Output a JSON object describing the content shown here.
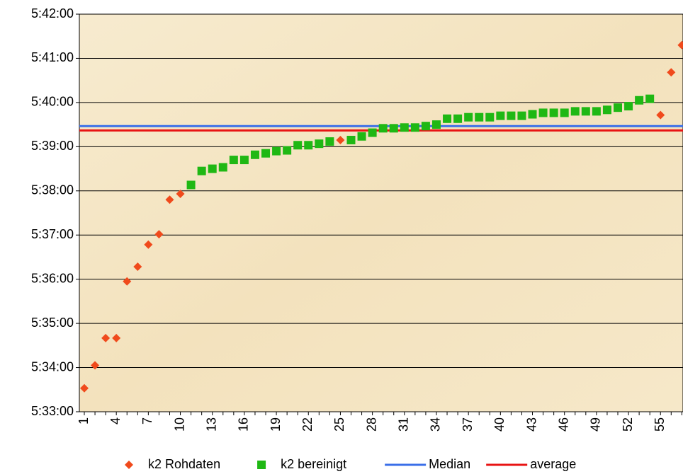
{
  "chart_data": {
    "type": "scatter",
    "categories": [
      "1",
      null,
      null,
      "4",
      null,
      null,
      "7",
      null,
      null,
      "10",
      null,
      null,
      "13",
      null,
      null,
      "16",
      null,
      null,
      "19",
      null,
      null,
      "22",
      null,
      null,
      "25",
      null,
      null,
      "28",
      null,
      null,
      "31",
      null,
      null,
      "34",
      null,
      null,
      "37",
      null,
      null,
      "40",
      null,
      null,
      "43",
      null,
      null,
      "46",
      null,
      null,
      "49",
      null,
      null,
      "52",
      null,
      null,
      "55",
      null,
      null
    ],
    "ylim": [
      19980,
      20520
    ],
    "yticks": [
      {
        "value": 19980,
        "label": "5:33:00"
      },
      {
        "value": 20040,
        "label": "5:34:00"
      },
      {
        "value": 20100,
        "label": "5:35:00"
      },
      {
        "value": 20160,
        "label": "5:36:00"
      },
      {
        "value": 20220,
        "label": "5:37:00"
      },
      {
        "value": 20280,
        "label": "5:38:00"
      },
      {
        "value": 20340,
        "label": "5:39:00"
      },
      {
        "value": 20400,
        "label": "5:40:00"
      },
      {
        "value": 20460,
        "label": "5:41:00"
      },
      {
        "value": 20520,
        "label": "5:42:00"
      }
    ],
    "grid": true,
    "series": [
      {
        "name": "k2 Rohdaten",
        "color": "#f04a1c",
        "marker": "diamond",
        "values": [
          20012,
          20043,
          20080,
          20080,
          20157,
          20177,
          20207,
          20221,
          20268,
          20276,
          null,
          null,
          null,
          null,
          null,
          null,
          null,
          null,
          null,
          null,
          null,
          null,
          null,
          null,
          20349,
          null,
          null,
          null,
          null,
          null,
          null,
          null,
          null,
          null,
          null,
          null,
          null,
          null,
          null,
          null,
          null,
          null,
          null,
          null,
          null,
          null,
          null,
          null,
          null,
          null,
          null,
          null,
          null,
          null,
          20383,
          20441,
          20478
        ]
      },
      {
        "name": "k2 bereinigt",
        "color": "#1fb814",
        "marker": "square",
        "values": [
          null,
          null,
          null,
          null,
          null,
          null,
          null,
          null,
          null,
          null,
          20288,
          20307,
          20310,
          20312,
          20322,
          20322,
          20329,
          20331,
          20334,
          20335,
          20342,
          20342,
          20344,
          20347,
          null,
          20349,
          20354,
          20359,
          20365,
          20365,
          20366,
          20366,
          20368,
          20370,
          20378,
          20378,
          20380,
          20380,
          20380,
          20382,
          20382,
          20382,
          20384,
          20386,
          20386,
          20386,
          20388,
          20388,
          20388,
          20390,
          20393,
          20395,
          20403,
          20405,
          null,
          null,
          null
        ]
      },
      {
        "name": "Median",
        "color": "#3b6fe8",
        "marker": "line",
        "value": 20368
      },
      {
        "name": "average",
        "color": "#e81414",
        "marker": "line",
        "value": 20362
      }
    ]
  }
}
